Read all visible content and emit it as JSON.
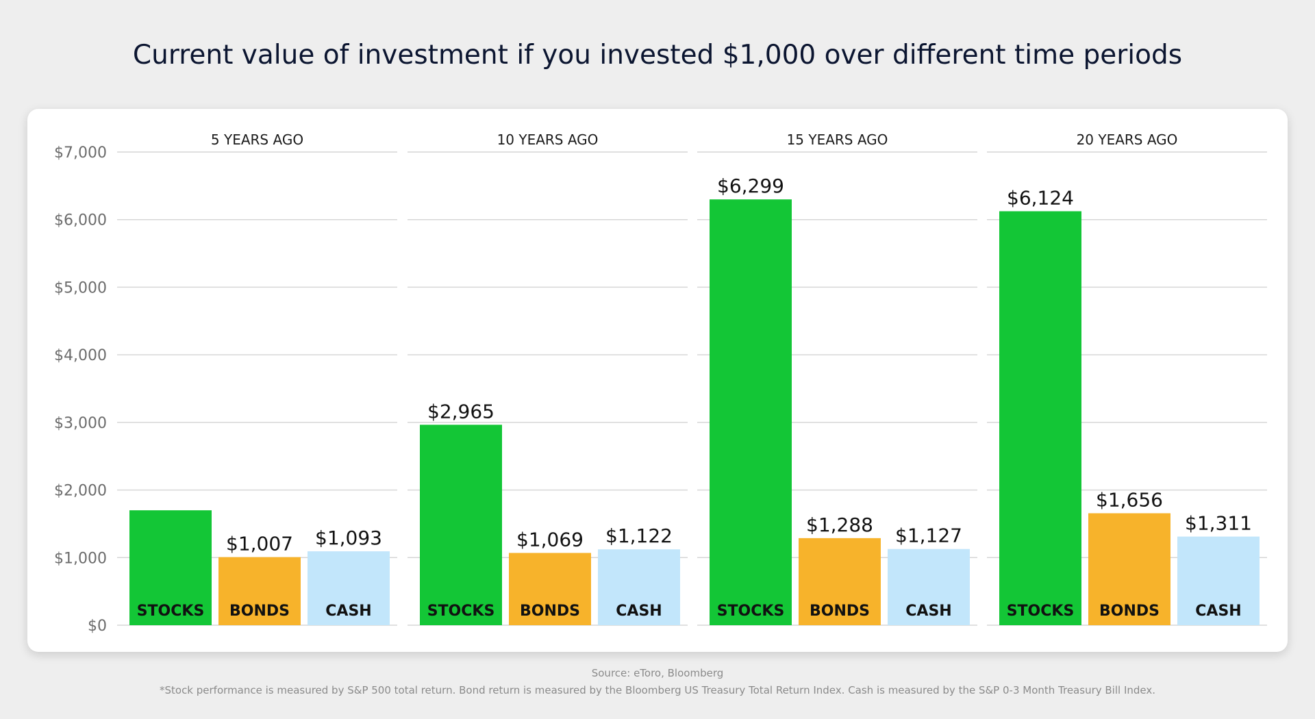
{
  "title": "Current value of investment if you invested $1,000 over different time periods",
  "source": "Source: eToro, Bloomberg",
  "footnote": "*Stock performance is measured by S&P 500 total return. Bond return is measured by the Bloomberg US Treasury Total Return Index. Cash is measured by the S&P 0-3 Month Treasury Bill Index.",
  "colors": {
    "stocks": "#13c636",
    "bonds": "#f7b32b",
    "cash": "#c2e6fb",
    "axis_text": "#6b6b6b",
    "gridline": "#d6d6d6",
    "title": "#0b1530"
  },
  "chart_data": {
    "type": "bar",
    "ylim": [
      0,
      7000
    ],
    "yticks": [
      {
        "value": 0,
        "label": "$0"
      },
      {
        "value": 1000,
        "label": "$1,000"
      },
      {
        "value": 2000,
        "label": "$2,000"
      },
      {
        "value": 3000,
        "label": "$3,000"
      },
      {
        "value": 4000,
        "label": "$4,000"
      },
      {
        "value": 5000,
        "label": "$5,000"
      },
      {
        "value": 6000,
        "label": "$6,000"
      },
      {
        "value": 7000,
        "label": "$7,000"
      }
    ],
    "grid": true,
    "panels": [
      {
        "label": "5 YEARS AGO",
        "bars": [
          {
            "category": "STOCKS",
            "value": 1700,
            "label": ""
          },
          {
            "category": "BONDS",
            "value": 1007,
            "label": "$1,007"
          },
          {
            "category": "CASH",
            "value": 1093,
            "label": "$1,093"
          }
        ]
      },
      {
        "label": "10 YEARS AGO",
        "bars": [
          {
            "category": "STOCKS",
            "value": 2965,
            "label": "$2,965"
          },
          {
            "category": "BONDS",
            "value": 1069,
            "label": "$1,069"
          },
          {
            "category": "CASH",
            "value": 1122,
            "label": "$1,122"
          }
        ]
      },
      {
        "label": "15 YEARS AGO",
        "bars": [
          {
            "category": "STOCKS",
            "value": 6299,
            "label": "$6,299"
          },
          {
            "category": "BONDS",
            "value": 1288,
            "label": "$1,288"
          },
          {
            "category": "CASH",
            "value": 1127,
            "label": "$1,127"
          }
        ]
      },
      {
        "label": "20 YEARS AGO",
        "bars": [
          {
            "category": "STOCKS",
            "value": 6124,
            "label": "$6,124"
          },
          {
            "category": "BONDS",
            "value": 1656,
            "label": "$1,656"
          },
          {
            "category": "CASH",
            "value": 1311,
            "label": "$1,311"
          }
        ]
      }
    ]
  }
}
